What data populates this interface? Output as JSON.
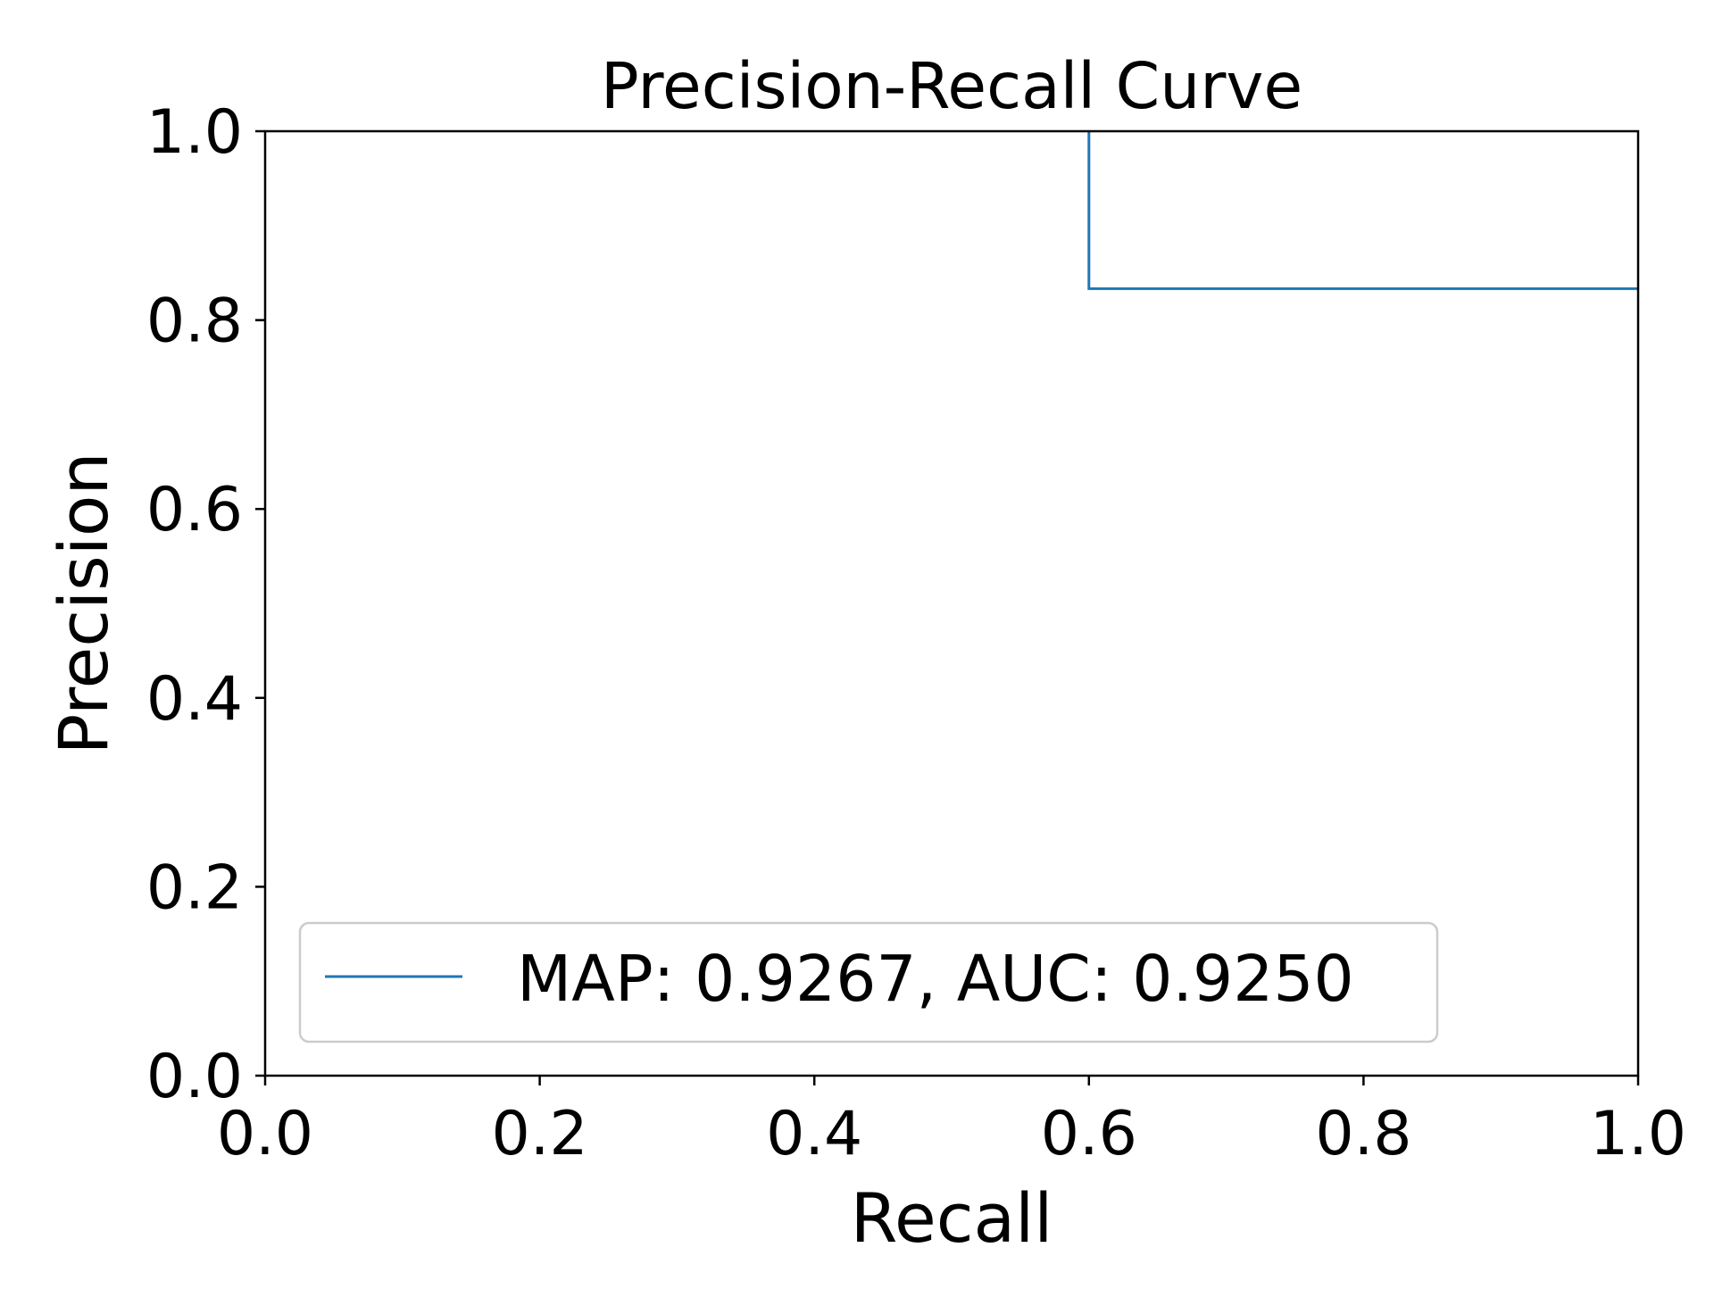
{
  "chart_data": {
    "type": "line",
    "title": "Precision-Recall Curve",
    "xlabel": "Recall",
    "ylabel": "Precision",
    "xlim": [
      0.0,
      1.0
    ],
    "ylim": [
      0.0,
      1.0
    ],
    "x_ticks": [
      "0.0",
      "0.2",
      "0.4",
      "0.6",
      "0.8",
      "1.0"
    ],
    "y_ticks": [
      "0.0",
      "0.2",
      "0.4",
      "0.6",
      "0.8",
      "1.0"
    ],
    "grid": false,
    "legend_position": "lower-left",
    "series": [
      {
        "name": "MAP: 0.9267, AUC: 0.9250",
        "color": "#1f77b4",
        "style": "step",
        "x": [
          0.6,
          0.6,
          1.0
        ],
        "y": [
          1.0,
          0.8333,
          0.8333
        ]
      }
    ]
  }
}
